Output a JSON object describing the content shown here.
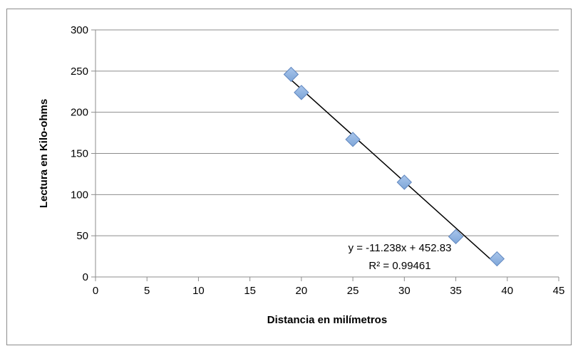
{
  "chart_data": {
    "type": "scatter",
    "title": "",
    "xlabel": "Distancia en milímetros",
    "ylabel": "Lectura en Kilo-ohms",
    "xlim": [
      0,
      45
    ],
    "ylim": [
      0,
      300
    ],
    "xticks": [
      0,
      5,
      10,
      15,
      20,
      25,
      30,
      35,
      40,
      45
    ],
    "yticks": [
      0,
      50,
      100,
      150,
      200,
      250,
      300
    ],
    "grid": "horizontal",
    "legend": "none",
    "marker": "diamond",
    "marker_color": "#7ea6d8",
    "series": [
      {
        "points": [
          {
            "x": 19,
            "y": 246
          },
          {
            "x": 20,
            "y": 224
          },
          {
            "x": 25,
            "y": 167
          },
          {
            "x": 30,
            "y": 115
          },
          {
            "x": 35,
            "y": 49
          },
          {
            "x": 39,
            "y": 22
          }
        ]
      }
    ],
    "trendline": {
      "type": "linear",
      "slope": -11.238,
      "intercept": 452.83,
      "x_range": [
        19,
        39
      ],
      "color": "#000000",
      "equation_label": "y = -11.238x + 452.83",
      "r2_label": "R² = 0.99461"
    }
  }
}
